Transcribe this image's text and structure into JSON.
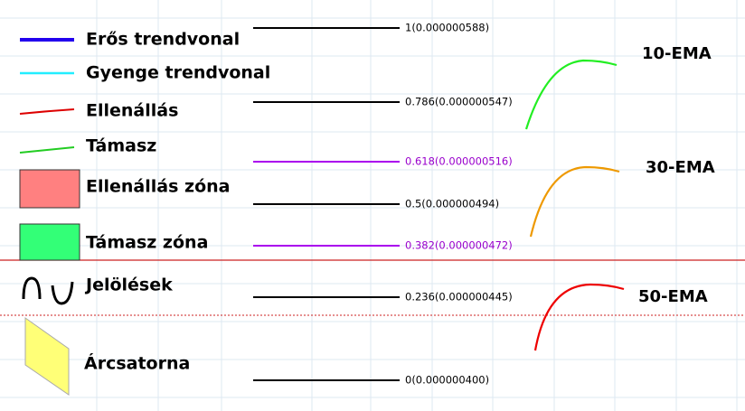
{
  "legend": [
    {
      "label": "Erős trendvonal"
    },
    {
      "label": "Gyenge trendvonal"
    },
    {
      "label": "Ellenállás"
    },
    {
      "label": "Támasz"
    },
    {
      "label": "Ellenállás zóna"
    },
    {
      "label": "Támasz zóna"
    },
    {
      "label": "Jelölések"
    },
    {
      "label": "Árcsatorna"
    }
  ],
  "fib_levels": [
    {
      "label": "1(0.000000588)"
    },
    {
      "label": "0.786(0.000000547)"
    },
    {
      "label": "0.618(0.000000516)"
    },
    {
      "label": "0.5(0.000000494)"
    },
    {
      "label": "0.382(0.000000472)"
    },
    {
      "label": "0.236(0.000000445)"
    },
    {
      "label": "0(0.000000400)"
    }
  ],
  "ema": [
    {
      "label": "10-EMA"
    },
    {
      "label": "30-EMA"
    },
    {
      "label": "50-EMA"
    }
  ]
}
